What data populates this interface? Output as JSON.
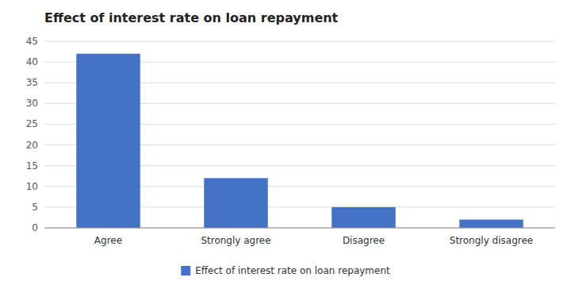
{
  "chart_data": {
    "type": "bar",
    "title": "Effect of interest rate on loan repayment",
    "categories": [
      "Agree",
      "Strongly agree",
      "Disagree",
      "Strongly disagree"
    ],
    "series": [
      {
        "name": "Effect of interest rate on loan repayment",
        "color": "#4472C4",
        "values": [
          42,
          12,
          5,
          2
        ]
      }
    ],
    "ylim": [
      0,
      45
    ],
    "yticks": [
      0,
      5,
      10,
      15,
      20,
      25,
      30,
      35,
      40,
      45
    ],
    "grid": true,
    "legend": "bottom"
  }
}
